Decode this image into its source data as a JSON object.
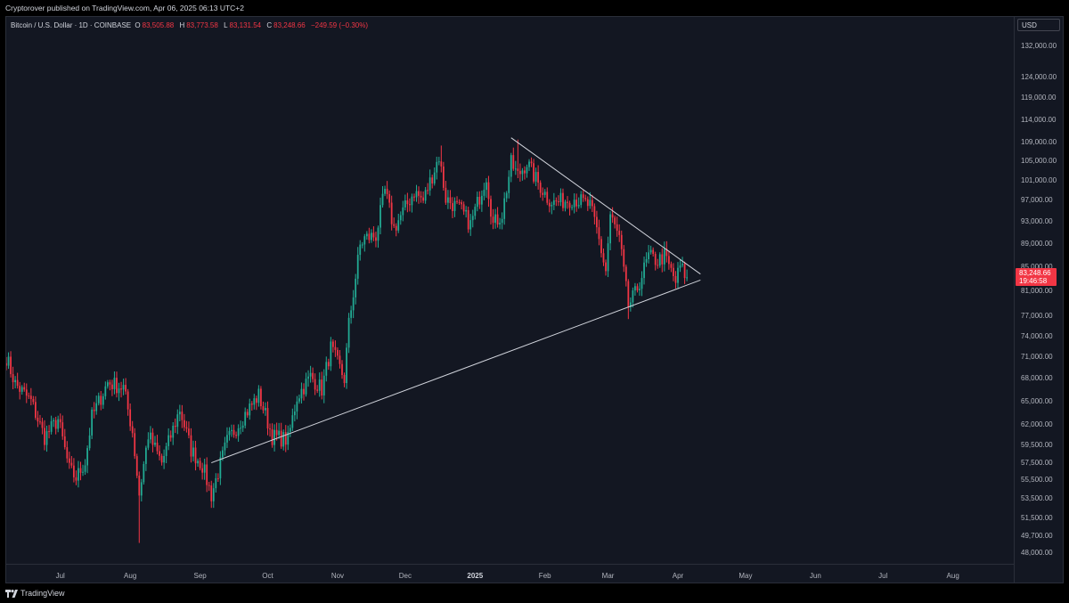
{
  "header": {
    "published_text": "Cryptorover published on TradingView.com, Apr 06, 2025 06:13 UTC+2"
  },
  "legend": {
    "symbol": "Bitcoin / U.S. Dollar · 1D · COINBASE",
    "open_label": "O",
    "open": "83,505.88",
    "high_label": "H",
    "high": "83,773.58",
    "low_label": "L",
    "low": "83,131.54",
    "close_label": "C",
    "close": "83,248.66",
    "change": "−249.59 (−0.30%)"
  },
  "price_axis": {
    "currency": "USD",
    "current_price": "83,248.66",
    "countdown": "19:46:58"
  },
  "footer": {
    "logo_text": "TradingView"
  },
  "colors": {
    "up": "#22ab94",
    "down": "#f23645",
    "background": "#131722",
    "trendline": "#d1d4dc"
  },
  "chart_data": {
    "type": "candlestick",
    "y_scale": "log",
    "ylim": [
      47000,
      140000
    ],
    "y_ticks": [
      48000,
      49700,
      51500,
      53500,
      55500,
      57500,
      59500,
      62000,
      65000,
      68000,
      71000,
      74000,
      77000,
      81000,
      85000,
      89000,
      93000,
      97000,
      101000,
      105000,
      109000,
      114000,
      119000,
      124000,
      132000
    ],
    "y_tick_labels": [
      "48,000.00",
      "49,700.00",
      "51,500.00",
      "53,500.00",
      "55,500.00",
      "57,500.00",
      "59,500.00",
      "62,000.00",
      "65,000.00",
      "68,000.00",
      "71,000.00",
      "74,000.00",
      "77,000.00",
      "81,000.00",
      "85,000.00",
      "89,000.00",
      "93,000.00",
      "97,000.00",
      "101,000.00",
      "105,000.00",
      "109,000.00",
      "114,000.00",
      "119,000.00",
      "124,000.00",
      "132,000.00"
    ],
    "x_ticks": [
      {
        "label": "Jul",
        "date": "2024-07-01",
        "bold": false
      },
      {
        "label": "Aug",
        "date": "2024-08-01",
        "bold": false
      },
      {
        "label": "Sep",
        "date": "2024-09-01",
        "bold": false
      },
      {
        "label": "Oct",
        "date": "2024-10-01",
        "bold": false
      },
      {
        "label": "Nov",
        "date": "2024-11-01",
        "bold": false
      },
      {
        "label": "Dec",
        "date": "2024-12-01",
        "bold": false
      },
      {
        "label": "2025",
        "date": "2025-01-01",
        "bold": true
      },
      {
        "label": "Feb",
        "date": "2025-02-01",
        "bold": false
      },
      {
        "label": "Mar",
        "date": "2025-03-01",
        "bold": false
      },
      {
        "label": "Apr",
        "date": "2025-04-01",
        "bold": false
      },
      {
        "label": "May",
        "date": "2025-05-01",
        "bold": false
      },
      {
        "label": "Jun",
        "date": "2025-06-01",
        "bold": false
      },
      {
        "label": "Jul",
        "date": "2025-07-01",
        "bold": false
      },
      {
        "label": "Aug",
        "date": "2025-08-01",
        "bold": false
      }
    ],
    "x_range": [
      "2024-06-07",
      "2025-08-28"
    ],
    "close_anchors": [
      [
        "2024-06-07",
        71000
      ],
      [
        "2024-06-11",
        67300
      ],
      [
        "2024-06-18",
        65000
      ],
      [
        "2024-06-24",
        60500
      ],
      [
        "2024-06-30",
        62700
      ],
      [
        "2024-07-05",
        56700
      ],
      [
        "2024-07-08",
        55800
      ],
      [
        "2024-07-12",
        57600
      ],
      [
        "2024-07-15",
        63000
      ],
      [
        "2024-07-22",
        67500
      ],
      [
        "2024-07-29",
        66800
      ],
      [
        "2024-08-02",
        61200
      ],
      [
        "2024-08-05",
        54000
      ],
      [
        "2024-08-09",
        60800
      ],
      [
        "2024-08-15",
        57500
      ],
      [
        "2024-08-23",
        64000
      ],
      [
        "2024-08-28",
        59000
      ],
      [
        "2024-09-02",
        57200
      ],
      [
        "2024-09-06",
        53900
      ],
      [
        "2024-09-13",
        60000
      ],
      [
        "2024-09-20",
        63000
      ],
      [
        "2024-09-27",
        65800
      ],
      [
        "2024-09-30",
        63300
      ],
      [
        "2024-10-03",
        60600
      ],
      [
        "2024-10-10",
        60200
      ],
      [
        "2024-10-14",
        65600
      ],
      [
        "2024-10-20",
        68300
      ],
      [
        "2024-10-25",
        66600
      ],
      [
        "2024-10-29",
        72300
      ],
      [
        "2024-11-04",
        68000
      ],
      [
        "2024-11-06",
        75800
      ],
      [
        "2024-11-11",
        88700
      ],
      [
        "2024-11-13",
        90000
      ],
      [
        "2024-11-18",
        90500
      ],
      [
        "2024-11-22",
        98900
      ],
      [
        "2024-11-26",
        91800
      ],
      [
        "2024-12-05",
        98800
      ],
      [
        "2024-12-09",
        97000
      ],
      [
        "2024-12-16",
        106000
      ],
      [
        "2024-12-19",
        97500
      ],
      [
        "2024-12-26",
        95000
      ],
      [
        "2024-12-30",
        92500
      ],
      [
        "2025-01-06",
        102000
      ],
      [
        "2025-01-09",
        92500
      ],
      [
        "2025-01-13",
        94500
      ],
      [
        "2025-01-17",
        104500
      ],
      [
        "2025-01-20",
        102000
      ],
      [
        "2025-01-24",
        104700
      ],
      [
        "2025-01-27",
        102000
      ],
      [
        "2025-02-02",
        97700
      ],
      [
        "2025-02-05",
        96600
      ],
      [
        "2025-02-14",
        97500
      ],
      [
        "2025-02-21",
        96000
      ],
      [
        "2025-02-24",
        91500
      ],
      [
        "2025-02-28",
        84300
      ],
      [
        "2025-03-02",
        94200
      ],
      [
        "2025-03-06",
        89900
      ],
      [
        "2025-03-10",
        78600
      ],
      [
        "2025-03-13",
        80500
      ],
      [
        "2025-03-19",
        86800
      ],
      [
        "2025-03-23",
        86000
      ],
      [
        "2025-03-26",
        86900
      ],
      [
        "2025-03-31",
        82500
      ],
      [
        "2025-04-02",
        85100
      ],
      [
        "2025-04-04",
        83800
      ],
      [
        "2025-04-05",
        83248.66
      ]
    ],
    "notable_lows": [
      [
        "2024-08-05",
        49000
      ],
      [
        "2024-09-06",
        52550
      ],
      [
        "2025-03-10",
        76600
      ]
    ],
    "notable_highs": [
      [
        "2024-12-17",
        108300
      ],
      [
        "2025-01-20",
        109600
      ],
      [
        "2025-03-02",
        95000
      ]
    ],
    "trendlines": [
      {
        "name": "resistance",
        "from": [
          "2025-01-17",
          110000
        ],
        "to": [
          "2025-04-11",
          83800
        ]
      },
      {
        "name": "support",
        "from": [
          "2024-09-06",
          57500
        ],
        "to": [
          "2025-04-11",
          82800
        ]
      }
    ]
  }
}
